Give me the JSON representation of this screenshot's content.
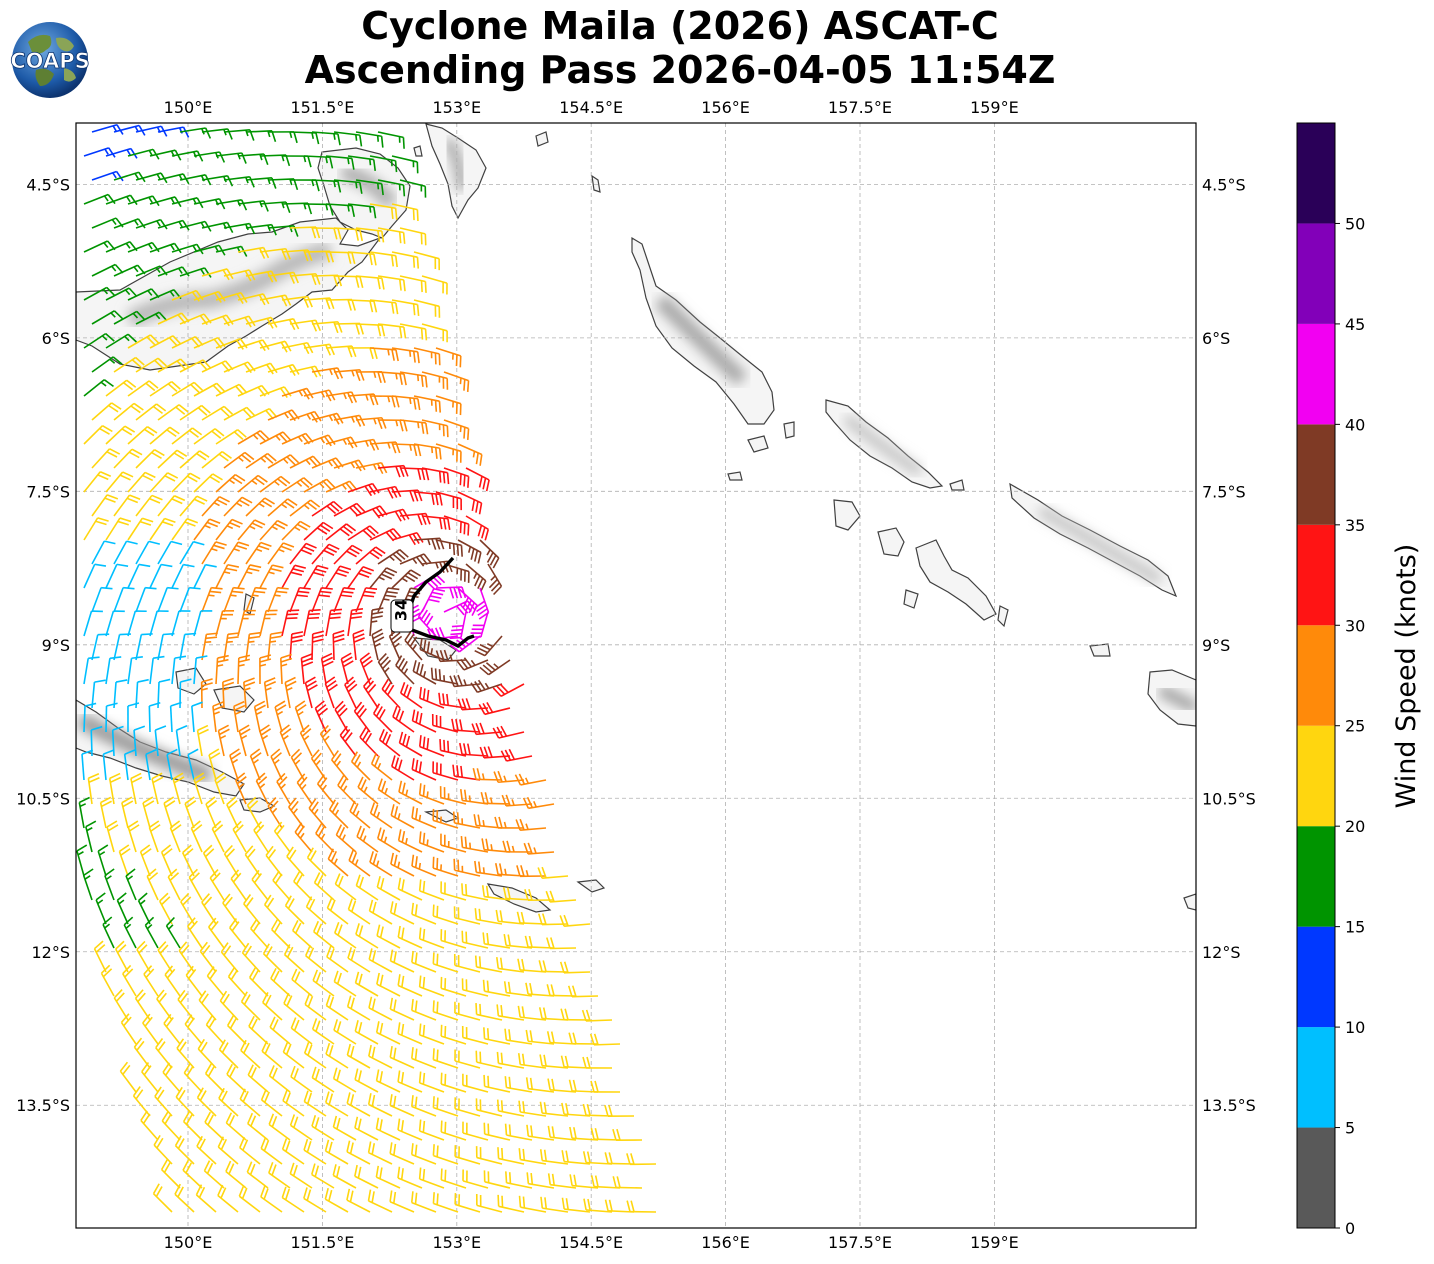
{
  "header": {
    "logo_text": "COAPS",
    "title_line1": "Cyclone Maila (2026) ASCAT-C",
    "title_line2": "Ascending Pass 2026-04-05 11:54Z"
  },
  "map": {
    "lon_range": [
      148.75,
      161.25
    ],
    "lat_range": [
      -14.7,
      -3.9
    ],
    "lon_ticks": [
      {
        "value": 150.0,
        "label": "150°E"
      },
      {
        "value": 151.5,
        "label": "151.5°E"
      },
      {
        "value": 153.0,
        "label": "153°E"
      },
      {
        "value": 154.5,
        "label": "154.5°E"
      },
      {
        "value": 156.0,
        "label": "156°E"
      },
      {
        "value": 157.5,
        "label": "157.5°E"
      },
      {
        "value": 159.0,
        "label": "159°E"
      }
    ],
    "lat_ticks": [
      {
        "value": -4.5,
        "label": "4.5°S"
      },
      {
        "value": -6.0,
        "label": "6°S"
      },
      {
        "value": -7.5,
        "label": "7.5°S"
      },
      {
        "value": -9.0,
        "label": "9°S"
      },
      {
        "value": -10.5,
        "label": "10.5°S"
      },
      {
        "value": -12.0,
        "label": "12°S"
      },
      {
        "value": -13.5,
        "label": "13.5°S"
      }
    ],
    "gridlines": true,
    "contour_label": "34",
    "wind_barbs": "drawn",
    "colors": {
      "coast": "#404040",
      "grid": "#b0b0b0",
      "contour": "#000000"
    }
  },
  "colorbar": {
    "label": "Wind Speed (knots)",
    "bins": [
      {
        "from": 0,
        "to": 5,
        "color": "#595959"
      },
      {
        "from": 5,
        "to": 10,
        "color": "#00bfff"
      },
      {
        "from": 10,
        "to": 15,
        "color": "#0038ff"
      },
      {
        "from": 15,
        "to": 20,
        "color": "#009400"
      },
      {
        "from": 20,
        "to": 25,
        "color": "#ffd60f"
      },
      {
        "from": 25,
        "to": 30,
        "color": "#ff8a0a"
      },
      {
        "from": 30,
        "to": 35,
        "color": "#ff1414"
      },
      {
        "from": 35,
        "to": 40,
        "color": "#7f3a25"
      },
      {
        "from": 40,
        "to": 45,
        "color": "#f200f2"
      },
      {
        "from": 45,
        "to": 50,
        "color": "#8200b9"
      },
      {
        "from": 50,
        "to": 55,
        "color": "#2a0058"
      }
    ],
    "ticks": [
      "0",
      "5",
      "10",
      "15",
      "20",
      "25",
      "30",
      "35",
      "40",
      "45",
      "50"
    ]
  }
}
